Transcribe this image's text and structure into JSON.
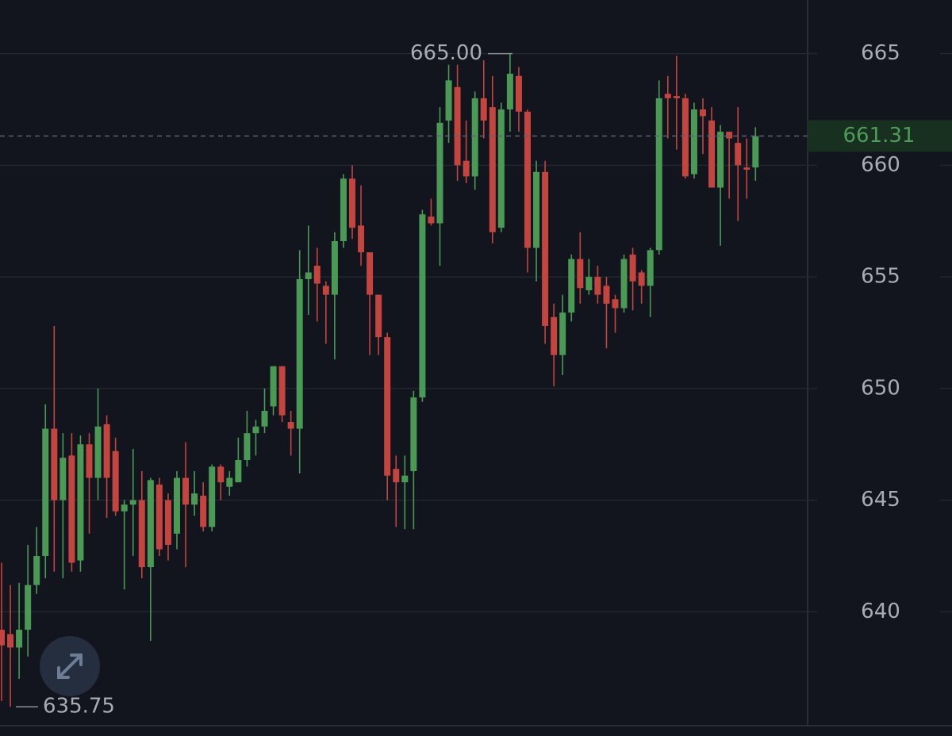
{
  "chart_data": {
    "type": "candlestick",
    "open": [
      639.2,
      639.0,
      638.4,
      639.2,
      641.2,
      642.5,
      648.2,
      645.0,
      647.0,
      642.3,
      647.5,
      646.0,
      648.4,
      647.2,
      644.5,
      644.8,
      645.0,
      642.0,
      645.7,
      645.0,
      643.5,
      646.0,
      644.8,
      645.2,
      643.8,
      646.5,
      645.6,
      645.8,
      646.8,
      648.0,
      648.3,
      649.2,
      651.0,
      648.5,
      648.2,
      654.9,
      655.5,
      654.6,
      654.2,
      656.6,
      659.4,
      657.3,
      656.1,
      654.2,
      652.3,
      646.4,
      645.8,
      646.3,
      649.6,
      657.7,
      657.4,
      662.0,
      663.5,
      660.2,
      659.5,
      663.0,
      662.6,
      657.2,
      662.5,
      664.0,
      662.4,
      656.3,
      659.7,
      653.2,
      651.5,
      653.4,
      655.8,
      654.4,
      655.0,
      654.6,
      654.0,
      653.6,
      656.0,
      655.2,
      654.6,
      656.2,
      663.2,
      663.1,
      663.0,
      659.6,
      662.5,
      662.0,
      659.0,
      661.5,
      661.0,
      659.9,
      659.9
    ],
    "high": [
      642.2,
      641.2,
      641.3,
      643.0,
      643.8,
      649.3,
      652.8,
      648.0,
      648.0,
      647.9,
      648.0,
      650.0,
      648.8,
      647.8,
      645.0,
      647.3,
      646.3,
      646.0,
      646.0,
      645.3,
      646.3,
      647.6,
      646.3,
      645.8,
      646.6,
      646.6,
      646.3,
      647.8,
      649.0,
      648.6,
      650.0,
      651.0,
      651.0,
      649.0,
      656.2,
      657.3,
      656.3,
      654.8,
      657.0,
      659.6,
      660.0,
      659.1,
      656.0,
      654.2,
      652.5,
      647.0,
      647.0,
      649.9,
      658.0,
      658.5,
      662.6,
      664.5,
      664.5,
      662.0,
      663.3,
      664.7,
      664.0,
      662.8,
      665.0,
      664.4,
      662.5,
      660.2,
      660.2,
      653.8,
      654.2,
      656.0,
      657.0,
      655.8,
      655.5,
      655.0,
      654.2,
      656.0,
      656.3,
      655.3,
      656.3,
      663.8,
      664.0,
      664.9,
      663.2,
      662.8,
      663.0,
      662.6,
      661.8,
      661.5,
      662.6,
      661.2,
      661.7
    ],
    "low": [
      636.0,
      635.75,
      637.0,
      638.0,
      640.8,
      641.5,
      641.8,
      641.5,
      641.8,
      641.8,
      643.5,
      645.0,
      644.2,
      644.3,
      641.0,
      642.5,
      641.5,
      638.7,
      642.5,
      642.3,
      642.8,
      642.0,
      644.3,
      643.6,
      643.6,
      645.0,
      645.2,
      645.8,
      646.5,
      647.0,
      648.0,
      648.8,
      648.5,
      647.0,
      646.2,
      653.3,
      653.0,
      652.0,
      651.3,
      656.3,
      656.7,
      655.5,
      651.5,
      651.5,
      645.0,
      643.8,
      643.7,
      643.7,
      649.4,
      657.3,
      655.5,
      661.0,
      659.3,
      659.2,
      658.9,
      661.2,
      656.5,
      657.0,
      661.5,
      661.5,
      655.2,
      654.8,
      652.0,
      650.1,
      650.6,
      653.0,
      653.8,
      654.2,
      653.8,
      651.8,
      652.5,
      653.4,
      653.5,
      653.8,
      653.2,
      656.0,
      661.2,
      660.7,
      659.4,
      659.4,
      660.5,
      659.0,
      656.4,
      658.5,
      657.5,
      658.5,
      659.3
    ],
    "close": [
      638.5,
      638.4,
      639.2,
      641.2,
      642.5,
      648.2,
      645.0,
      646.9,
      642.2,
      647.5,
      646.0,
      648.3,
      646.0,
      644.5,
      644.8,
      645.0,
      642.0,
      645.9,
      642.8,
      643.0,
      646.0,
      644.8,
      645.3,
      643.8,
      646.5,
      645.8,
      646.0,
      646.8,
      648.0,
      648.3,
      649.0,
      651.0,
      648.8,
      648.2,
      654.9,
      655.2,
      654.7,
      654.2,
      656.6,
      659.4,
      657.2,
      656.1,
      654.2,
      652.3,
      646.1,
      645.8,
      646.1,
      649.6,
      657.8,
      657.4,
      661.9,
      663.8,
      660.0,
      659.5,
      663.0,
      662.0,
      657.0,
      662.5,
      664.1,
      662.4,
      656.3,
      659.7,
      652.8,
      651.5,
      653.4,
      655.8,
      654.5,
      655.0,
      654.2,
      653.8,
      653.6,
      655.8,
      654.8,
      654.6,
      656.2,
      663.0,
      663.0,
      663.0,
      659.5,
      662.5,
      662.2,
      659.0,
      661.5,
      661.2,
      660.0,
      659.8,
      661.3
    ],
    "up_color": "#4a9a55",
    "down_color": "#c4443f",
    "ylim": [
      634.9,
      667.4
    ],
    "yticks": [
      640,
      645,
      650,
      655,
      660,
      665
    ],
    "grid": true,
    "high_label": {
      "value": 665,
      "label": "665.00"
    },
    "low_label": 635.75,
    "last_price": 661.31
  }
}
